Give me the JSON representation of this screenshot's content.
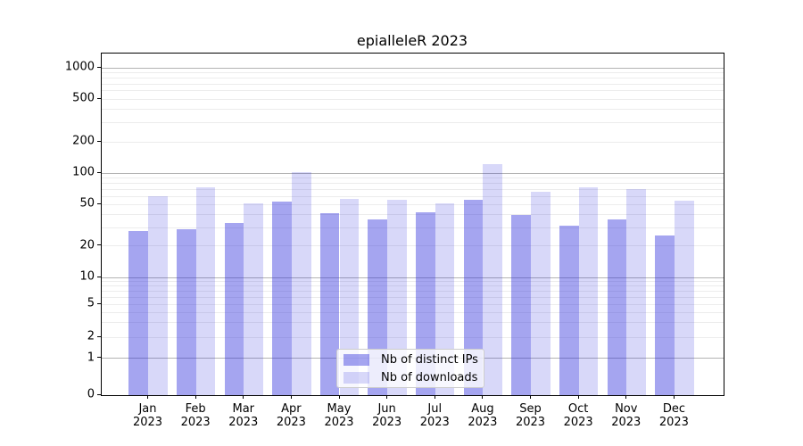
{
  "title": "epialleleR 2023",
  "chart_data": {
    "type": "bar",
    "title": "epialleleR 2023",
    "categories": [
      "Jan 2023",
      "Feb 2023",
      "Mar 2023",
      "Apr 2023",
      "May 2023",
      "Jun 2023",
      "Jul 2023",
      "Aug 2023",
      "Sep 2023",
      "Oct 2023",
      "Nov 2023",
      "Dec 2023"
    ],
    "x_tick_line1": [
      "Jan",
      "Feb",
      "Mar",
      "Apr",
      "May",
      "Jun",
      "Jul",
      "Aug",
      "Sep",
      "Oct",
      "Nov",
      "Dec"
    ],
    "x_tick_line2": "2023",
    "series": [
      {
        "name": "Nb of distinct IPs",
        "color": "rgba(40,40,220,0.42)",
        "values": [
          28,
          29,
          33,
          53,
          41,
          36,
          42,
          56,
          40,
          31,
          36,
          25
        ]
      },
      {
        "name": "Nb of downloads",
        "color": "rgba(40,40,220,0.18)",
        "values": [
          60,
          73,
          51,
          103,
          57,
          56,
          51,
          122,
          67,
          74,
          70,
          54
        ]
      }
    ],
    "yscale": "symlog-like",
    "yticks": [
      0,
      1,
      2,
      5,
      10,
      20,
      50,
      100,
      200,
      500,
      1000
    ],
    "ylim": [
      0,
      1350
    ],
    "grid": "horizontal major (1,10,100,1000) + minor (2-9 per decade)",
    "legend_position": "lower center inside plot"
  },
  "colors": {
    "bar_base": "#2828dc",
    "major_grid": "#b3b3b3",
    "minor_grid": "#ececec",
    "axis": "#000000",
    "background": "#ffffff"
  }
}
